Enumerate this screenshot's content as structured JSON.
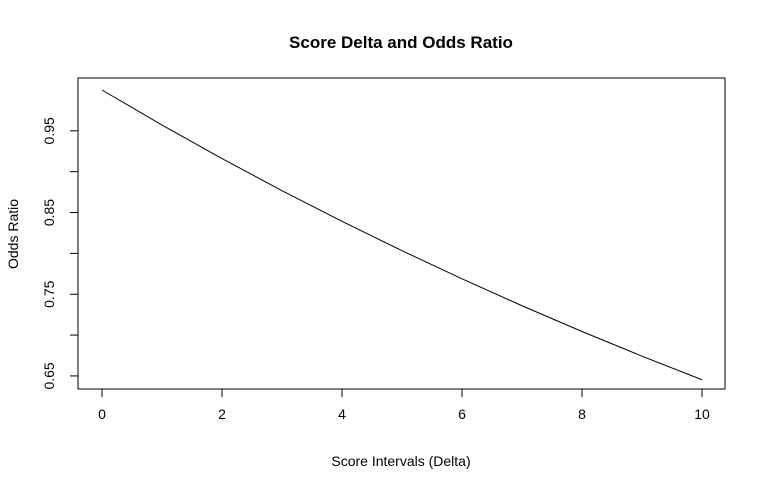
{
  "chart_data": {
    "type": "line",
    "title": "Score Delta and Odds Ratio",
    "xlabel": "Score Intervals (Delta)",
    "ylabel": "Odds Ratio",
    "xlim": [
      0,
      10
    ],
    "ylim": [
      0.645,
      1.0
    ],
    "xticks": [
      0,
      2,
      4,
      6,
      8,
      10
    ],
    "xtick_labels": [
      "0",
      "2",
      "4",
      "6",
      "8",
      "10"
    ],
    "yticks": [
      0.65,
      0.7,
      0.75,
      0.8,
      0.85,
      0.9,
      0.95
    ],
    "ytick_labels": [
      "0.65",
      "",
      "0.75",
      "",
      "0.85",
      "",
      "0.95"
    ],
    "series": [
      {
        "name": "odds ratio",
        "x": [
          0,
          1,
          2,
          3,
          4,
          5,
          6,
          7,
          8,
          9,
          10
        ],
        "y": [
          1.0,
          0.9571,
          0.9161,
          0.8768,
          0.8392,
          0.8033,
          0.7689,
          0.7359,
          0.7044,
          0.6742,
          0.6453
        ]
      }
    ],
    "colors": {
      "line": "#000000",
      "frame": "#000000"
    }
  }
}
